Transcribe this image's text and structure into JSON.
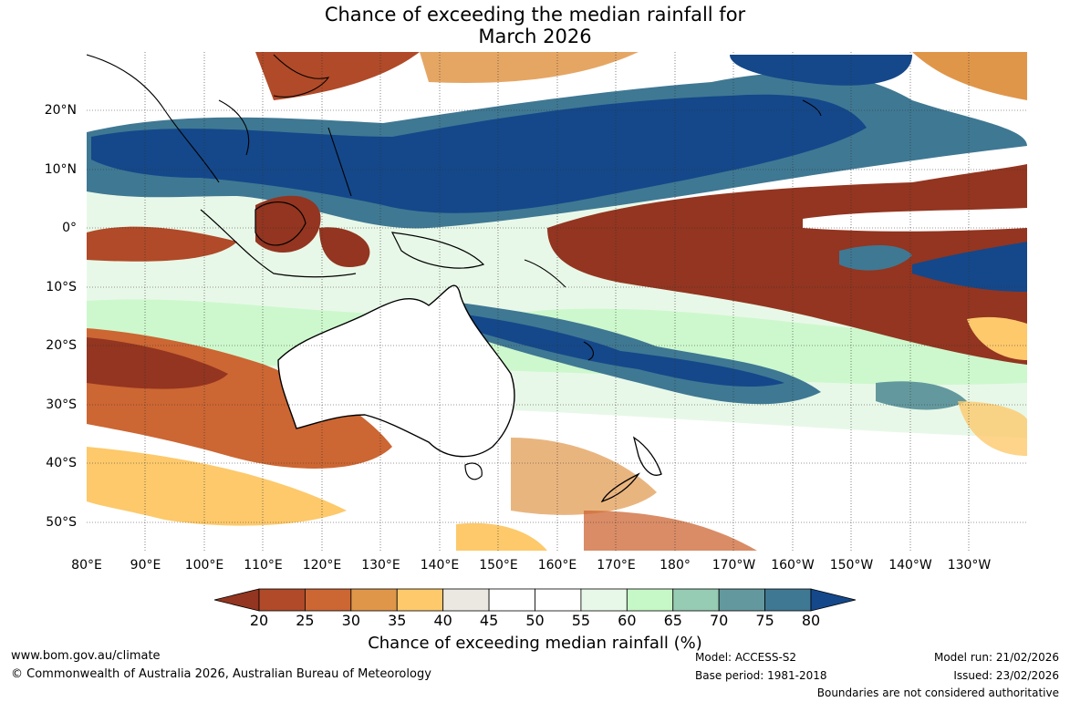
{
  "title_line1": "Chance of exceeding the median rainfall for",
  "title_line2": "March 2026",
  "lon_labels": [
    "80°E",
    "90°E",
    "100°E",
    "110°E",
    "120°E",
    "130°E",
    "140°E",
    "150°E",
    "160°E",
    "170°E",
    "180°",
    "170°W",
    "160°W",
    "150°W",
    "140°W",
    "130°W"
  ],
  "lat_labels": [
    "20°N",
    "10°N",
    "0°",
    "10°S",
    "20°S",
    "30°S",
    "40°S",
    "50°S"
  ],
  "colorbar": {
    "ticks": [
      "20",
      "25",
      "30",
      "35",
      "40",
      "45",
      "50",
      "55",
      "60",
      "65",
      "70",
      "75",
      "80"
    ],
    "colors": [
      "#933520",
      "#b04a28",
      "#cc6633",
      "#e09649",
      "#fdc96b",
      "#ebe8e2",
      "#ffffff",
      "#ffffff",
      "#e8f8e8",
      "#c6f7c6",
      "#96cbb4",
      "#63999e",
      "#3f7893",
      "#14488a"
    ],
    "title": "Chance of exceeding median rainfall (%)"
  },
  "footer": {
    "website": "www.bom.gov.au/climate",
    "copyright": "© Commonwealth of Australia 2026, Australian Bureau of Meteorology",
    "model": "Model: ACCESS-S2",
    "base_period": "Base period: 1981-2018",
    "model_run": "Model run: 21/02/2026",
    "issued": "Issued: 23/02/2026",
    "disclaimer": "Boundaries are not considered authoritative"
  }
}
